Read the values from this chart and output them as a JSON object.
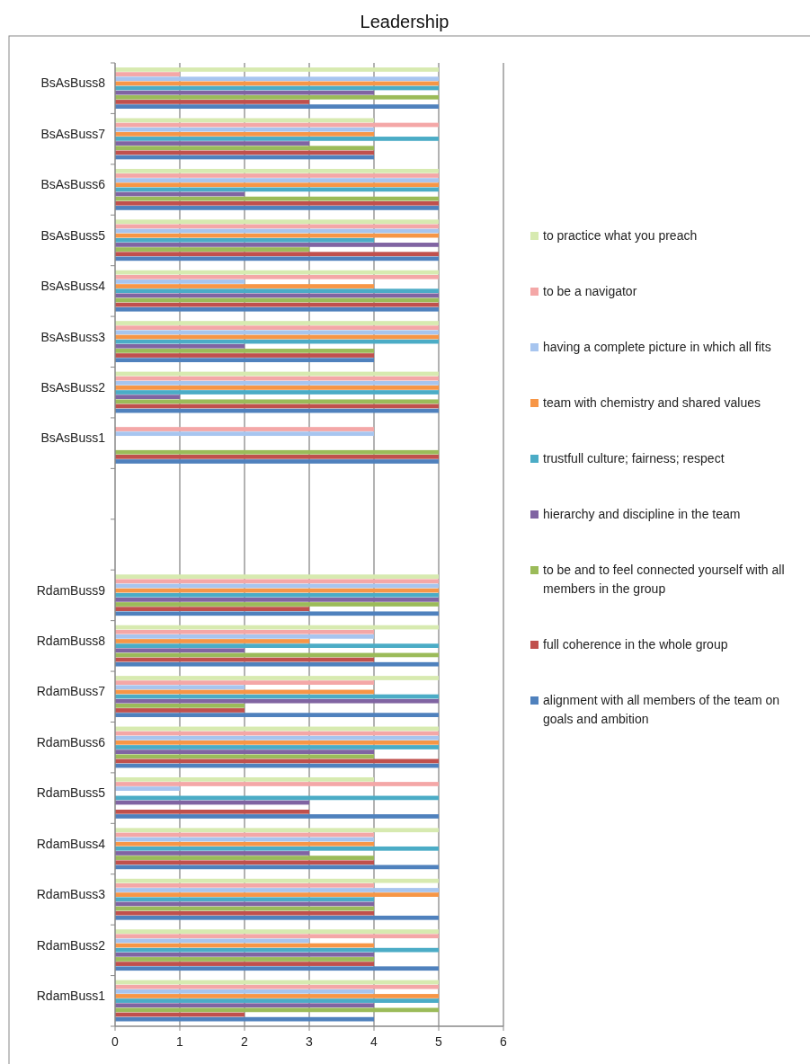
{
  "chart_data": {
    "type": "bar",
    "orientation": "horizontal",
    "title": "Leadership",
    "categories": [
      "BsAsBuss8",
      "BsAsBuss7",
      "BsAsBuss6",
      "BsAsBuss5",
      "BsAsBuss4",
      "BsAsBuss3",
      "BsAsBuss2",
      "BsAsBuss1",
      null,
      null,
      "RdamBuss9",
      "RdamBuss8",
      "RdamBuss7",
      "RdamBuss6",
      "RdamBuss5",
      "RdamBuss4",
      "RdamBuss3",
      "RdamBuss2",
      "RdamBuss1"
    ],
    "series": [
      {
        "name": "alignment with all members of the team on goals and ambition",
        "color": "#4f81bd",
        "values": [
          5,
          4,
          5,
          5,
          5,
          4,
          5,
          5,
          null,
          null,
          5,
          5,
          5,
          5,
          5,
          5,
          5,
          5,
          4
        ]
      },
      {
        "name": "full coherence in the whole group",
        "color": "#c0504d",
        "values": [
          3,
          4,
          5,
          5,
          5,
          4,
          5,
          5,
          null,
          null,
          3,
          4,
          2,
          5,
          3,
          4,
          4,
          4,
          2
        ]
      },
      {
        "name": "to be and to feel connected yourself with all members in the group",
        "color": "#9bbb59",
        "values": [
          5,
          4,
          5,
          3,
          5,
          4,
          5,
          5,
          null,
          null,
          5,
          5,
          2,
          4,
          null,
          4,
          4,
          4,
          5
        ]
      },
      {
        "name": "hierarchy and discipline in the team",
        "color": "#8064a2",
        "values": [
          4,
          3,
          2,
          5,
          5,
          2,
          1,
          null,
          null,
          null,
          5,
          2,
          5,
          4,
          3,
          3,
          4,
          4,
          4
        ]
      },
      {
        "name": "trustfull culture; fairness; respect",
        "color": "#4bacc6",
        "values": [
          5,
          5,
          5,
          4,
          5,
          5,
          5,
          null,
          null,
          null,
          5,
          5,
          5,
          5,
          5,
          5,
          4,
          5,
          5
        ]
      },
      {
        "name": "team with chemistry and shared values",
        "color": "#f79646",
        "values": [
          5,
          4,
          5,
          5,
          4,
          5,
          5,
          null,
          null,
          null,
          5,
          3,
          4,
          5,
          null,
          4,
          5,
          4,
          5
        ]
      },
      {
        "name": "having a complete picture in which all fits",
        "color": "#a7c5ef",
        "values": [
          5,
          4,
          5,
          5,
          2,
          5,
          5,
          4,
          null,
          null,
          5,
          4,
          2,
          5,
          1,
          4,
          5,
          3,
          4
        ]
      },
      {
        "name": "to be a navigator",
        "color": "#f4a7a7",
        "values": [
          1,
          5,
          5,
          5,
          5,
          5,
          5,
          4,
          null,
          null,
          5,
          4,
          4,
          5,
          5,
          4,
          4,
          5,
          5
        ]
      },
      {
        "name": "to practice what you preach",
        "color": "#d7eab0",
        "values": [
          5,
          4,
          5,
          5,
          5,
          5,
          5,
          null,
          null,
          null,
          5,
          5,
          5,
          5,
          4,
          5,
          5,
          5,
          5
        ]
      }
    ],
    "xlim": [
      0,
      6
    ],
    "xticks": [
      0,
      1,
      2,
      3,
      4,
      5,
      6
    ],
    "grid": "x",
    "legend": "right"
  }
}
